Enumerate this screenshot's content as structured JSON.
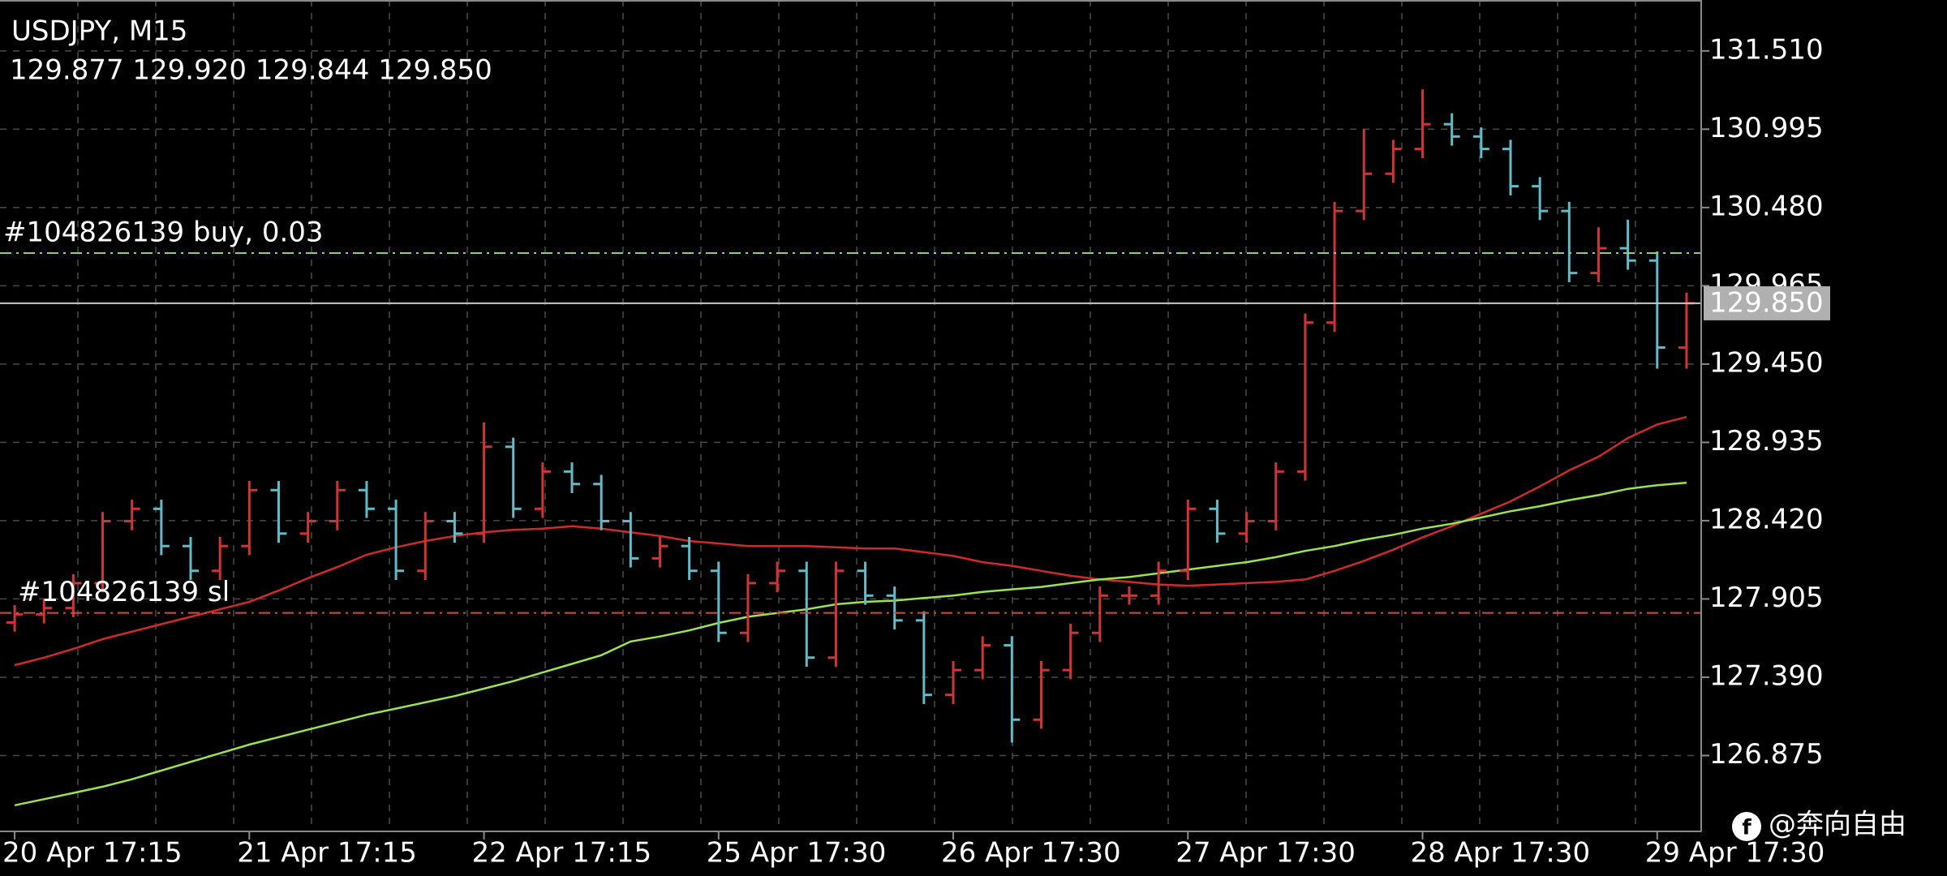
{
  "chart_data": {
    "type": "ohlc",
    "title": "USDJPY, M15",
    "quote": "129.877 129.920 129.844 129.850",
    "categories": [
      "20 Apr 17:15",
      null,
      null,
      null,
      null,
      null,
      null,
      null,
      "21 Apr 17:15",
      null,
      null,
      null,
      null,
      null,
      null,
      null,
      "22 Apr 17:15",
      null,
      null,
      null,
      null,
      null,
      null,
      null,
      "25 Apr 17:30",
      null,
      null,
      null,
      null,
      null,
      null,
      null,
      "26 Apr 17:30",
      null,
      null,
      null,
      null,
      null,
      null,
      null,
      "27 Apr 17:30",
      null,
      null,
      null,
      null,
      null,
      null,
      null,
      "28 Apr 17:30",
      null,
      null,
      null,
      null,
      null,
      null,
      null,
      "29 Apr 17:30",
      null
    ],
    "open": [
      127.75,
      127.804,
      127.845,
      128.009,
      128.417,
      128.498,
      128.253,
      128.09,
      128.253,
      128.621,
      128.335,
      128.417,
      128.621,
      128.498,
      128.09,
      128.417,
      128.335,
      128.906,
      128.498,
      128.743,
      128.661,
      128.417,
      128.172,
      128.253,
      128.09,
      127.682,
      128.009,
      128.09,
      127.519,
      128.09,
      127.927,
      127.764,
      127.274,
      127.437,
      127.6,
      127.111,
      127.437,
      127.682,
      127.927,
      127.927,
      128.09,
      128.498,
      128.335,
      128.417,
      128.743,
      129.723,
      130.457,
      130.702,
      130.865,
      131.028,
      130.947,
      130.865,
      130.62,
      130.457,
      130.049,
      130.212,
      130.131,
      129.559
    ],
    "high": [
      127.864,
      127.905,
      128.069,
      128.477,
      128.558,
      128.558,
      128.313,
      128.313,
      128.681,
      128.681,
      128.477,
      128.681,
      128.681,
      128.558,
      128.477,
      128.477,
      129.066,
      128.966,
      128.803,
      128.803,
      128.721,
      128.477,
      128.313,
      128.313,
      128.15,
      128.069,
      128.15,
      128.15,
      128.15,
      128.15,
      127.987,
      127.824,
      127.497,
      127.66,
      127.66,
      127.497,
      127.742,
      127.987,
      127.987,
      128.15,
      128.558,
      128.558,
      128.477,
      128.803,
      129.783,
      130.517,
      130.995,
      130.925,
      131.257,
      131.1,
      131.007,
      130.925,
      130.68,
      130.517,
      130.35,
      130.4,
      130.191,
      129.92
    ],
    "low": [
      127.69,
      127.744,
      127.785,
      127.949,
      128.357,
      128.193,
      128.03,
      128.03,
      128.193,
      128.275,
      128.275,
      128.357,
      128.438,
      128.03,
      128.03,
      128.275,
      128.275,
      128.438,
      128.438,
      128.601,
      128.357,
      128.112,
      128.112,
      128.03,
      127.622,
      127.622,
      127.949,
      127.459,
      127.459,
      127.867,
      127.704,
      127.214,
      127.214,
      127.377,
      126.96,
      127.051,
      127.377,
      127.622,
      127.867,
      127.867,
      128.03,
      128.275,
      128.275,
      128.357,
      128.683,
      129.663,
      130.397,
      130.642,
      130.805,
      130.887,
      130.805,
      130.56,
      130.397,
      129.989,
      129.989,
      130.071,
      129.42,
      129.42
    ],
    "close": [
      127.804,
      127.845,
      128.009,
      128.417,
      128.498,
      128.253,
      128.09,
      128.253,
      128.621,
      128.335,
      128.417,
      128.621,
      128.498,
      128.09,
      128.417,
      128.335,
      128.906,
      128.498,
      128.743,
      128.661,
      128.417,
      128.172,
      128.253,
      128.09,
      127.682,
      128.009,
      128.09,
      127.519,
      128.09,
      127.927,
      127.764,
      127.274,
      127.437,
      127.6,
      127.111,
      127.437,
      127.682,
      127.927,
      127.927,
      128.09,
      128.498,
      128.335,
      128.417,
      128.743,
      129.723,
      130.457,
      130.702,
      130.865,
      131.028,
      130.947,
      130.865,
      130.62,
      130.457,
      130.049,
      130.212,
      130.131,
      129.559,
      129.85
    ],
    "up_color": "#d03434",
    "down_color": "#5fbcc8",
    "series": [
      {
        "color": "#d02a2a",
        "values": [
          127.47,
          127.519,
          127.576,
          127.641,
          127.69,
          127.739,
          127.788,
          127.837,
          127.886,
          127.96,
          128.041,
          128.115,
          128.196,
          128.245,
          128.286,
          128.319,
          128.343,
          128.359,
          128.368,
          128.384,
          128.368,
          128.343,
          128.319,
          128.286,
          128.27,
          128.253,
          128.253,
          128.253,
          128.245,
          128.237,
          128.237,
          128.213,
          128.188,
          128.147,
          128.123,
          128.09,
          128.057,
          128.033,
          128.017,
          128.0,
          127.992,
          128.0,
          128.009,
          128.017,
          128.033,
          128.09,
          128.155,
          128.229,
          128.31,
          128.384,
          128.466,
          128.547,
          128.645,
          128.751,
          128.841,
          128.963,
          129.053,
          129.102
        ]
      },
      {
        "color": "#9be34f",
        "values": [
          126.548,
          126.588,
          126.629,
          126.67,
          126.719,
          126.776,
          126.833,
          126.89,
          126.947,
          126.996,
          127.045,
          127.094,
          127.143,
          127.184,
          127.225,
          127.266,
          127.315,
          127.364,
          127.421,
          127.478,
          127.535,
          127.625,
          127.658,
          127.698,
          127.747,
          127.788,
          127.813,
          127.837,
          127.87,
          127.886,
          127.894,
          127.911,
          127.927,
          127.951,
          127.968,
          127.984,
          128.009,
          128.033,
          128.049,
          128.074,
          128.098,
          128.123,
          128.147,
          128.18,
          128.221,
          128.253,
          128.294,
          128.327,
          128.368,
          128.4,
          128.441,
          128.482,
          128.515,
          128.555,
          128.588,
          128.629,
          128.653,
          128.67
        ]
      }
    ],
    "orders": [
      {
        "label": "#104826139 buy, 0.03",
        "price": 130.18,
        "color": "#8fcf6a"
      },
      {
        "label": "#104826139 sl",
        "price": 127.813,
        "color": "#d04a4a"
      }
    ],
    "current_price": {
      "value": 129.85,
      "label": "129.850"
    },
    "ylim": [
      126.376,
      131.845
    ],
    "yticks": [
      {
        "value": 131.51,
        "label": "131.510"
      },
      130.995,
      {
        "value": 130.48,
        "label": "130.480"
      },
      129.965,
      {
        "value": 129.45,
        "label": "129.450"
      },
      128.935,
      {
        "value": 128.42,
        "label": "128.420"
      },
      127.905,
      {
        "value": 127.39,
        "label": "127.390"
      },
      126.875
    ],
    "grid": true,
    "watermark": "@奔向自由"
  }
}
